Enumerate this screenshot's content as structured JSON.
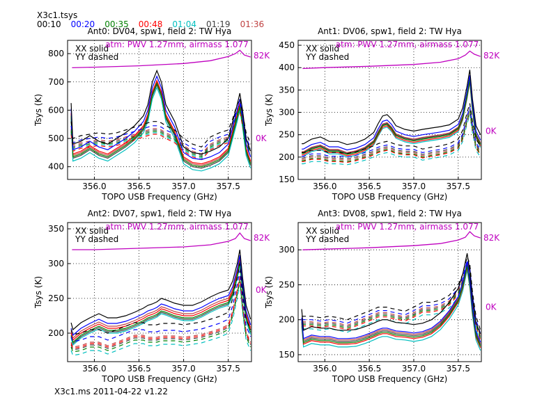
{
  "header": {
    "title": "X3c1.tsys"
  },
  "footer": {
    "text": "X3c1.ms    2011-04-22   v1.22"
  },
  "chart_data": {
    "type": "line",
    "times": [
      {
        "label": "00:10",
        "color": "#000000"
      },
      {
        "label": "00:20",
        "color": "#0000ff"
      },
      {
        "label": "00:35",
        "color": "#007f00"
      },
      {
        "label": "00:48",
        "color": "#ff0000"
      },
      {
        "label": "01:04",
        "color": "#00bfbf"
      },
      {
        "label": "01:19",
        "color": "#404040"
      },
      {
        "label": "01:36",
        "color": "#bf4040"
      }
    ],
    "atm_color": "#bf00bf",
    "x": [
      355.74,
      355.76,
      355.85,
      355.95,
      356.05,
      356.15,
      356.25,
      356.35,
      356.45,
      356.55,
      356.6,
      356.65,
      356.7,
      356.75,
      356.8,
      356.9,
      357.0,
      357.1,
      357.2,
      357.3,
      357.4,
      357.5,
      357.55,
      357.6,
      357.63,
      357.66,
      357.7,
      357.75
    ],
    "atm_x": [
      355.75,
      356.0,
      356.5,
      357.0,
      357.3,
      357.5,
      357.58,
      357.63,
      357.68,
      357.75
    ],
    "panels": [
      {
        "title": "Ant0: DV04,  spw1,  field 2: TW Hya",
        "xlabel": "TOPO USB Frequency (GHz)",
        "ylabel": "Tsys (K)",
        "xlim": [
          355.7,
          357.76
        ],
        "ylim": [
          355,
          847
        ],
        "xticks": [
          "356.0",
          "356.5",
          "357.0",
          "357.5"
        ],
        "yticks": [
          "400",
          "500",
          "600",
          "700",
          "800"
        ],
        "legend": [
          "XX solid",
          "YY dashed"
        ],
        "atm_label": "atm: PWV 1.27mm, airmass 1.077",
        "atm_top": "82K",
        "atm_zero": "0K",
        "atm_zero_value": 500,
        "atm_y": [
          750,
          752,
          757,
          765,
          775,
          790,
          800,
          812,
          795,
          788
        ],
        "xx_base": [
          625,
          480,
          490,
          510,
          490,
          480,
          500,
          520,
          545,
          580,
          620,
          700,
          740,
          700,
          620,
          560,
          470,
          450,
          445,
          455,
          470,
          500,
          560,
          620,
          660,
          600,
          500,
          455
        ],
        "yy_base": [
          560,
          500,
          510,
          515,
          520,
          515,
          520,
          530,
          540,
          550,
          555,
          560,
          560,
          555,
          545,
          530,
          500,
          480,
          470,
          505,
          520,
          530,
          570,
          620,
          640,
          590,
          520,
          480
        ],
        "xx_offsets": [
          0,
          -20,
          -45,
          -35,
          -60,
          -50,
          -40
        ],
        "yy_offsets": [
          0,
          -15,
          -35,
          -45,
          -40,
          -30,
          -25
        ]
      },
      {
        "title": "Ant1: DV06,  spw1,  field 2: TW Hya",
        "xlabel": "TOPO USB Frequency (GHz)",
        "ylabel": "Tsys (K)",
        "xlim": [
          355.7,
          357.76
        ],
        "ylim": [
          150,
          461
        ],
        "xticks": [
          "356.0",
          "356.5",
          "357.0",
          "357.5"
        ],
        "yticks": [
          "150",
          "200",
          "250",
          "300",
          "350",
          "400",
          "450"
        ],
        "legend": [
          "XX solid",
          "YY dashed"
        ],
        "atm_label": "atm: PWV 1.27mm, airmass 1.077",
        "atm_top": "82K",
        "atm_zero": "0K",
        "atm_zero_value": 258,
        "atm_y": [
          398,
          400,
          403,
          407,
          412,
          420,
          428,
          437,
          430,
          425
        ],
        "xx_base": [
          230,
          230,
          240,
          245,
          235,
          235,
          228,
          232,
          240,
          255,
          275,
          292,
          295,
          285,
          270,
          262,
          258,
          262,
          265,
          268,
          272,
          285,
          310,
          360,
          395,
          330,
          270,
          250
        ],
        "yy_base": [
          210,
          210,
          215,
          215,
          210,
          210,
          208,
          212,
          218,
          225,
          230,
          233,
          235,
          232,
          228,
          225,
          225,
          218,
          222,
          225,
          230,
          240,
          260,
          300,
          320,
          280,
          240,
          225
        ],
        "xx_offsets": [
          0,
          -12,
          -22,
          -25,
          -28,
          -20,
          -18
        ],
        "yy_offsets": [
          0,
          -8,
          -18,
          -20,
          -25,
          -12,
          -15
        ]
      },
      {
        "title": "Ant2: DV07,  spw1,  field 2: TW Hya",
        "xlabel": "TOPO USB Frequency (GHz)",
        "ylabel": "Tsys (K)",
        "xlim": [
          355.7,
          357.76
        ],
        "ylim": [
          159,
          359
        ],
        "xticks": [
          "356.0",
          "356.5",
          "357.0",
          "357.5"
        ],
        "yticks": [
          "200",
          "250",
          "300",
          "350"
        ],
        "legend": [
          "XX solid",
          "YY dashed"
        ],
        "atm_label": "atm: PWV 1.27mm, airmass 1.077",
        "atm_top": "82K",
        "atm_zero": "0K",
        "atm_zero_value": 262,
        "atm_y": [
          320,
          320,
          322,
          324,
          327,
          332,
          336,
          344,
          336,
          333
        ],
        "xx_base": [
          215,
          205,
          215,
          222,
          228,
          222,
          222,
          225,
          230,
          236,
          240,
          242,
          245,
          250,
          248,
          243,
          240,
          240,
          245,
          252,
          258,
          262,
          275,
          300,
          320,
          280,
          240,
          220
        ],
        "yy_base": [
          205,
          198,
          200,
          205,
          205,
          200,
          205,
          210,
          215,
          215,
          212,
          212,
          212,
          214,
          214,
          214,
          212,
          214,
          216,
          220,
          224,
          230,
          250,
          280,
          300,
          260,
          220,
          205
        ],
        "xx_offsets": [
          0,
          -8,
          -18,
          -15,
          -22,
          -20,
          -12
        ],
        "yy_offsets": [
          0,
          -10,
          -25,
          -20,
          -30,
          -22,
          -18
        ]
      },
      {
        "title": "Ant3: DV08,  spw1,  field 2: TW Hya",
        "xlabel": "TOPO USB Frequency (GHz)",
        "ylabel": "Tsys (K)",
        "xlim": [
          355.7,
          357.76
        ],
        "ylim": [
          140,
          339
        ],
        "xticks": [
          "356.0",
          "356.5",
          "357.0",
          "357.5"
        ],
        "yticks": [
          "150",
          "200",
          "250",
          "300"
        ],
        "legend": [
          "XX solid",
          "YY dashed"
        ],
        "atm_label": "atm: PWV 1.27mm, airmass 1.077",
        "atm_top": "82K",
        "atm_zero": "0K",
        "atm_zero_value": 218,
        "atm_y": [
          300,
          301,
          303,
          306,
          309,
          314,
          318,
          326,
          320,
          317
        ],
        "xx_base": [
          215,
          185,
          190,
          188,
          188,
          185,
          185,
          186,
          190,
          195,
          198,
          200,
          200,
          198,
          196,
          195,
          193,
          195,
          200,
          210,
          225,
          245,
          265,
          295,
          270,
          230,
          195,
          180
        ],
        "yy_base": [
          205,
          205,
          205,
          203,
          205,
          203,
          200,
          205,
          210,
          215,
          218,
          218,
          218,
          216,
          215,
          212,
          218,
          225,
          225,
          228,
          235,
          250,
          265,
          290,
          280,
          240,
          205,
          185
        ],
        "xx_offsets": [
          0,
          -12,
          -18,
          -20,
          -24,
          -16,
          -14
        ],
        "yy_offsets": [
          0,
          -5,
          -12,
          -14,
          -18,
          -10,
          -8
        ]
      }
    ]
  }
}
